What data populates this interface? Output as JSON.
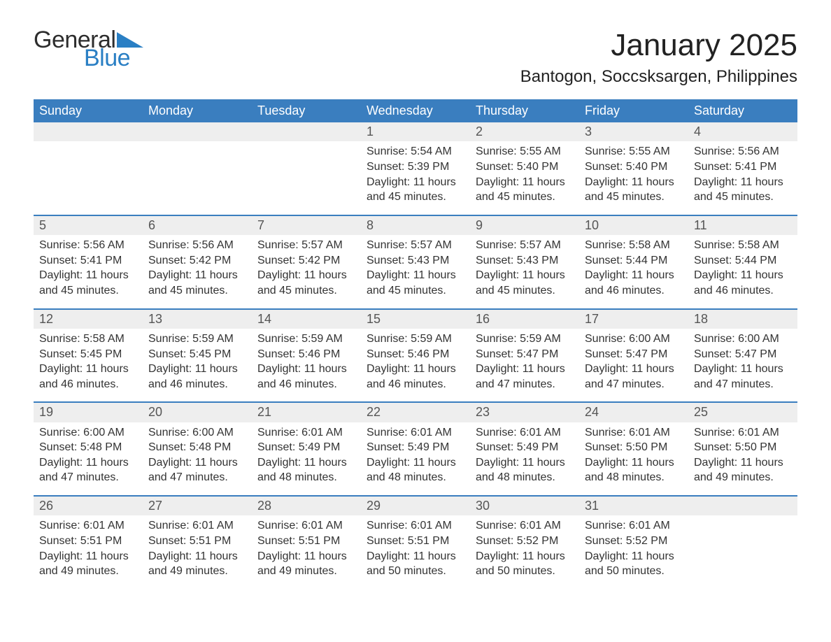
{
  "logo": {
    "text_general": "General",
    "text_blue": "Blue",
    "accent_color": "#2a7fc4",
    "text_color": "#2d2d2d"
  },
  "header": {
    "month_title": "January 2025",
    "location": "Bantogon, Soccsksargen, Philippines"
  },
  "colors": {
    "header_bg": "#3a7ebf",
    "header_text": "#ffffff",
    "daynum_bg": "#eeeeee",
    "daynum_text": "#555555",
    "body_text": "#333333",
    "row_border": "#3a7ebf",
    "page_bg": "#ffffff"
  },
  "weekdays": [
    "Sunday",
    "Monday",
    "Tuesday",
    "Wednesday",
    "Thursday",
    "Friday",
    "Saturday"
  ],
  "weeks": [
    [
      null,
      null,
      null,
      {
        "n": "1",
        "sr": "Sunrise: 5:54 AM",
        "ss": "Sunset: 5:39 PM",
        "dl": "Daylight: 11 hours and 45 minutes."
      },
      {
        "n": "2",
        "sr": "Sunrise: 5:55 AM",
        "ss": "Sunset: 5:40 PM",
        "dl": "Daylight: 11 hours and 45 minutes."
      },
      {
        "n": "3",
        "sr": "Sunrise: 5:55 AM",
        "ss": "Sunset: 5:40 PM",
        "dl": "Daylight: 11 hours and 45 minutes."
      },
      {
        "n": "4",
        "sr": "Sunrise: 5:56 AM",
        "ss": "Sunset: 5:41 PM",
        "dl": "Daylight: 11 hours and 45 minutes."
      }
    ],
    [
      {
        "n": "5",
        "sr": "Sunrise: 5:56 AM",
        "ss": "Sunset: 5:41 PM",
        "dl": "Daylight: 11 hours and 45 minutes."
      },
      {
        "n": "6",
        "sr": "Sunrise: 5:56 AM",
        "ss": "Sunset: 5:42 PM",
        "dl": "Daylight: 11 hours and 45 minutes."
      },
      {
        "n": "7",
        "sr": "Sunrise: 5:57 AM",
        "ss": "Sunset: 5:42 PM",
        "dl": "Daylight: 11 hours and 45 minutes."
      },
      {
        "n": "8",
        "sr": "Sunrise: 5:57 AM",
        "ss": "Sunset: 5:43 PM",
        "dl": "Daylight: 11 hours and 45 minutes."
      },
      {
        "n": "9",
        "sr": "Sunrise: 5:57 AM",
        "ss": "Sunset: 5:43 PM",
        "dl": "Daylight: 11 hours and 45 minutes."
      },
      {
        "n": "10",
        "sr": "Sunrise: 5:58 AM",
        "ss": "Sunset: 5:44 PM",
        "dl": "Daylight: 11 hours and 46 minutes."
      },
      {
        "n": "11",
        "sr": "Sunrise: 5:58 AM",
        "ss": "Sunset: 5:44 PM",
        "dl": "Daylight: 11 hours and 46 minutes."
      }
    ],
    [
      {
        "n": "12",
        "sr": "Sunrise: 5:58 AM",
        "ss": "Sunset: 5:45 PM",
        "dl": "Daylight: 11 hours and 46 minutes."
      },
      {
        "n": "13",
        "sr": "Sunrise: 5:59 AM",
        "ss": "Sunset: 5:45 PM",
        "dl": "Daylight: 11 hours and 46 minutes."
      },
      {
        "n": "14",
        "sr": "Sunrise: 5:59 AM",
        "ss": "Sunset: 5:46 PM",
        "dl": "Daylight: 11 hours and 46 minutes."
      },
      {
        "n": "15",
        "sr": "Sunrise: 5:59 AM",
        "ss": "Sunset: 5:46 PM",
        "dl": "Daylight: 11 hours and 46 minutes."
      },
      {
        "n": "16",
        "sr": "Sunrise: 5:59 AM",
        "ss": "Sunset: 5:47 PM",
        "dl": "Daylight: 11 hours and 47 minutes."
      },
      {
        "n": "17",
        "sr": "Sunrise: 6:00 AM",
        "ss": "Sunset: 5:47 PM",
        "dl": "Daylight: 11 hours and 47 minutes."
      },
      {
        "n": "18",
        "sr": "Sunrise: 6:00 AM",
        "ss": "Sunset: 5:47 PM",
        "dl": "Daylight: 11 hours and 47 minutes."
      }
    ],
    [
      {
        "n": "19",
        "sr": "Sunrise: 6:00 AM",
        "ss": "Sunset: 5:48 PM",
        "dl": "Daylight: 11 hours and 47 minutes."
      },
      {
        "n": "20",
        "sr": "Sunrise: 6:00 AM",
        "ss": "Sunset: 5:48 PM",
        "dl": "Daylight: 11 hours and 47 minutes."
      },
      {
        "n": "21",
        "sr": "Sunrise: 6:01 AM",
        "ss": "Sunset: 5:49 PM",
        "dl": "Daylight: 11 hours and 48 minutes."
      },
      {
        "n": "22",
        "sr": "Sunrise: 6:01 AM",
        "ss": "Sunset: 5:49 PM",
        "dl": "Daylight: 11 hours and 48 minutes."
      },
      {
        "n": "23",
        "sr": "Sunrise: 6:01 AM",
        "ss": "Sunset: 5:49 PM",
        "dl": "Daylight: 11 hours and 48 minutes."
      },
      {
        "n": "24",
        "sr": "Sunrise: 6:01 AM",
        "ss": "Sunset: 5:50 PM",
        "dl": "Daylight: 11 hours and 48 minutes."
      },
      {
        "n": "25",
        "sr": "Sunrise: 6:01 AM",
        "ss": "Sunset: 5:50 PM",
        "dl": "Daylight: 11 hours and 49 minutes."
      }
    ],
    [
      {
        "n": "26",
        "sr": "Sunrise: 6:01 AM",
        "ss": "Sunset: 5:51 PM",
        "dl": "Daylight: 11 hours and 49 minutes."
      },
      {
        "n": "27",
        "sr": "Sunrise: 6:01 AM",
        "ss": "Sunset: 5:51 PM",
        "dl": "Daylight: 11 hours and 49 minutes."
      },
      {
        "n": "28",
        "sr": "Sunrise: 6:01 AM",
        "ss": "Sunset: 5:51 PM",
        "dl": "Daylight: 11 hours and 49 minutes."
      },
      {
        "n": "29",
        "sr": "Sunrise: 6:01 AM",
        "ss": "Sunset: 5:51 PM",
        "dl": "Daylight: 11 hours and 50 minutes."
      },
      {
        "n": "30",
        "sr": "Sunrise: 6:01 AM",
        "ss": "Sunset: 5:52 PM",
        "dl": "Daylight: 11 hours and 50 minutes."
      },
      {
        "n": "31",
        "sr": "Sunrise: 6:01 AM",
        "ss": "Sunset: 5:52 PM",
        "dl": "Daylight: 11 hours and 50 minutes."
      },
      null
    ]
  ]
}
